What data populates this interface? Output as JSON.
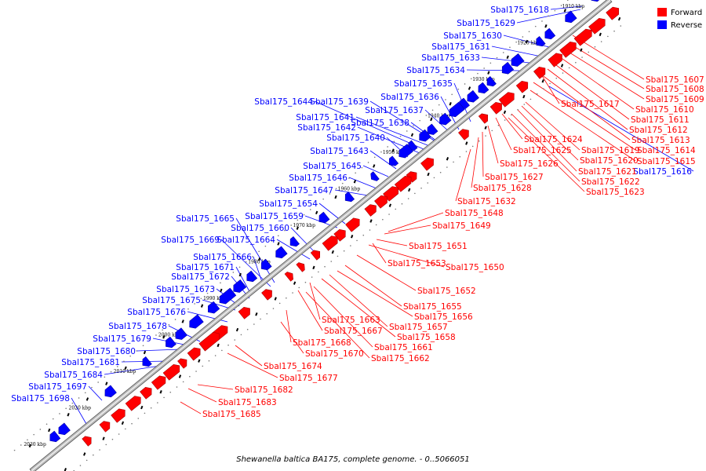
{
  "caption": "Shewanella baltica BA175, complete genome. - 0..5066051",
  "legend": {
    "forward": {
      "label": "Forward",
      "color": "#ff0000"
    },
    "reverse": {
      "label": "Reverse",
      "color": "#0000ff"
    }
  },
  "ticks": [
    "1910 kbp",
    "1920 kbp",
    "1930 kbp",
    "1940 kbp",
    "1950 kbp",
    "1960 kbp",
    "1970 kbp",
    "1980 kbp",
    "1990 kbp",
    "2000 kbp",
    "2010 kbp",
    "2020 kbp",
    "2030 kbp"
  ],
  "reverse_labels": [
    "Sbal175_1618",
    "Sbal175_1629",
    "Sbal175_1630",
    "Sbal175_1631",
    "Sbal175_1633",
    "Sbal175_1634",
    "Sbal175_1635",
    "Sbal175_1636",
    "Sbal175_1637",
    "Sbal175_1639",
    "Sbal175_1644",
    "Sbal175_1641",
    "Sbal175_1638",
    "Sbal175_1642",
    "Sbal175_1640",
    "Sbal175_1643",
    "Sbal175_1645",
    "Sbal175_1646",
    "Sbal175_1647",
    "Sbal175_1654",
    "Sbal175_1659",
    "Sbal175_1665",
    "Sbal175_1660",
    "Sbal175_1669",
    "Sbal175_1664",
    "Sbal175_1666",
    "Sbal175_1671",
    "Sbal175_1672",
    "Sbal175_1673",
    "Sbal175_1675",
    "Sbal175_1676",
    "Sbal175_1678",
    "Sbal175_1679",
    "Sbal175_1680",
    "Sbal175_1681",
    "Sbal175_1684",
    "Sbal175_1697",
    "Sbal175_1698",
    "Sbal175_1616"
  ],
  "forward_labels": [
    "Sbal175_1607",
    "Sbal175_1608",
    "Sbal175_1609",
    "Sbal175_1610",
    "Sbal175_1617",
    "Sbal175_1611",
    "Sbal175_1612",
    "Sbal175_1613",
    "Sbal175_1624",
    "Sbal175_1614",
    "Sbal175_1625",
    "Sbal175_1619",
    "Sbal175_1615",
    "Sbal175_1620",
    "Sbal175_1626",
    "Sbal175_1621",
    "Sbal175_1627",
    "Sbal175_1622",
    "Sbal175_1628",
    "Sbal175_1623",
    "Sbal175_1632",
    "Sbal175_1648",
    "Sbal175_1649",
    "Sbal175_1651",
    "Sbal175_1653",
    "Sbal175_1650",
    "Sbal175_1652",
    "Sbal175_1655",
    "Sbal175_1656",
    "Sbal175_1663",
    "Sbal175_1657",
    "Sbal175_1667",
    "Sbal175_1658",
    "Sbal175_1668",
    "Sbal175_1661",
    "Sbal175_1670",
    "Sbal175_1662",
    "Sbal175_1674",
    "Sbal175_1677",
    "Sbal175_1682",
    "Sbal175_1683",
    "Sbal175_1685"
  ]
}
